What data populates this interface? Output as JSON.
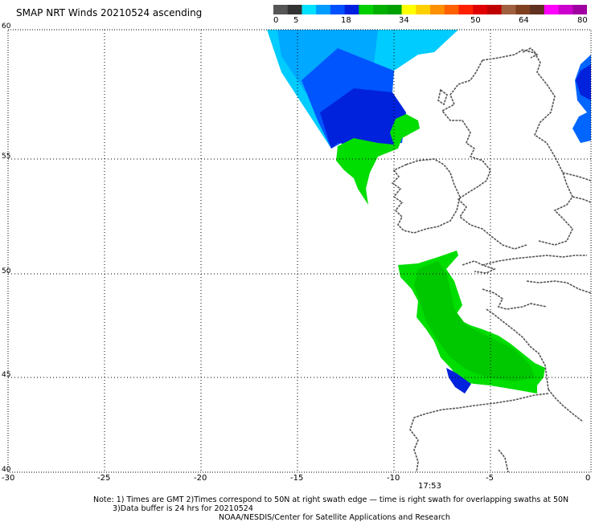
{
  "title": "SMAP NRT Winds 20210524 ascending",
  "colorbar": {
    "labels": [
      "0",
      "5",
      "18",
      "34",
      "50",
      "64",
      "80"
    ],
    "colors": [
      "#555555",
      "#333333",
      "#00e0ff",
      "#009cff",
      "#0050ff",
      "#0020e0",
      "#00d000",
      "#00b000",
      "#00a000",
      "#ffff00",
      "#ffd000",
      "#ff9000",
      "#ff6000",
      "#ff2000",
      "#e00000",
      "#c00000",
      "#a06040",
      "#804020",
      "#603020",
      "#ff00ff",
      "#cc00cc",
      "#a000a0"
    ]
  },
  "axes": {
    "lat_labels": [
      "60",
      "55",
      "50",
      "45",
      "40"
    ],
    "lon_labels": [
      "-30",
      "-25",
      "-20",
      "-15",
      "-10",
      "-5",
      "0"
    ]
  },
  "swath_time": "17:53",
  "notes": {
    "line1": "Note: 1) Times are GMT 2)Times correspond to 50N at right swath edge — time is right swath for overlapping swaths at 50N",
    "line2": "3)Data buffer is 24 hrs for 20210524",
    "line3": "NOAA/NESDIS/Center for Satellite Applications and Research"
  },
  "colors": {
    "green": "#00dd00",
    "deep_blue": "#0033ee",
    "cyan": "#00ccff",
    "coast": "#555555"
  }
}
